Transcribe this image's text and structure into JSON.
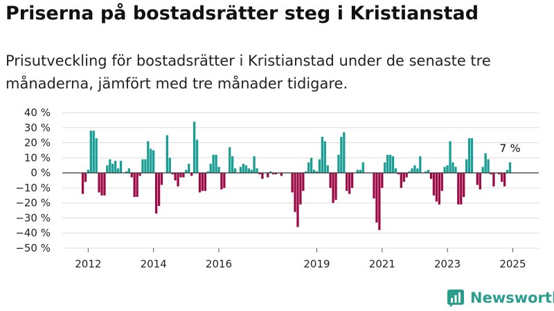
{
  "title": "Priserna på bostadsrätter steg i Kristianstad",
  "subtitle": "Prisutveckling för bostadsrätter i Kristianstad under de senaste tre månaderna, jämfört med tre månader tidigare.",
  "brand": "Newsworthy",
  "colors": {
    "positive": "#1a9e94",
    "negative": "#9c0a45",
    "grid": "#dddddd",
    "axis": "#333333"
  },
  "chart_data": {
    "type": "bar",
    "x_unit": "month",
    "x_start": "2011-11",
    "ylim": [
      -50,
      40
    ],
    "yticks": [
      "40 %",
      "30 %",
      "20 %",
      "10 %",
      "0 %",
      "−10 %",
      "−20 %",
      "−30 %",
      "−40 %",
      "−50 %"
    ],
    "xticks": [
      "2012",
      "2014",
      "2016",
      "2019",
      "2021",
      "2023",
      "2025"
    ],
    "annotation": "7 %",
    "values": [
      -14,
      -6,
      2,
      28,
      28,
      23,
      -13,
      -15,
      -15,
      5,
      9,
      6,
      8,
      3,
      8,
      0,
      1,
      3,
      -3,
      -16,
      -16,
      -2,
      9,
      9,
      21,
      16,
      15,
      -27,
      -22,
      -8,
      0,
      25,
      10,
      -1,
      -5,
      -9,
      -3,
      -3,
      2,
      6,
      -2,
      34,
      22,
      -13,
      -12,
      -12,
      1,
      6,
      12,
      12,
      4,
      -11,
      -10,
      0,
      17,
      11,
      3,
      0,
      4,
      6,
      5,
      3,
      2,
      11,
      3,
      -1,
      -4,
      0,
      -3,
      1,
      -1,
      -1,
      0,
      -2,
      0,
      0,
      0,
      -13,
      -26,
      -36,
      -21,
      -12,
      1,
      7,
      10,
      2,
      1,
      9,
      24,
      21,
      5,
      -10,
      -20,
      -18,
      12,
      24,
      27,
      -12,
      -14,
      -10,
      0,
      2,
      2,
      7,
      0,
      0,
      0,
      -17,
      -33,
      -38,
      -10,
      7,
      12,
      12,
      11,
      3,
      -1,
      -10,
      -6,
      -3,
      1,
      3,
      5,
      3,
      11,
      0,
      1,
      2,
      -4,
      -15,
      -19,
      -21,
      -12,
      4,
      5,
      21,
      7,
      4,
      -21,
      -21,
      -16,
      9,
      23,
      23,
      0,
      -8,
      -11,
      4,
      13,
      9,
      -1,
      -9,
      0,
      -1,
      -6,
      -9,
      2,
      7
    ]
  }
}
